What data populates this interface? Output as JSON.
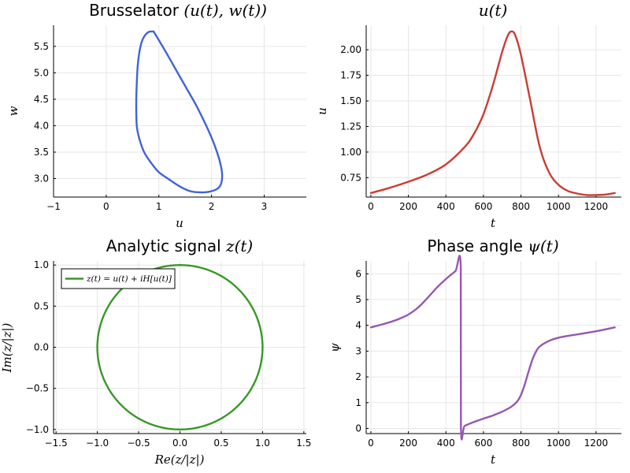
{
  "colors": {
    "brusselator": "#4063d8",
    "u": "#cb3c33",
    "analytic": "#389826",
    "phase": "#9558b2"
  },
  "chart_data": [
    {
      "id": "p1",
      "type": "line",
      "title": "Brusselator",
      "title_math": "(u(t), w(t))",
      "xlabel": "u",
      "ylabel": "w",
      "xlim": [
        -1,
        3.8
      ],
      "ylim": [
        2.65,
        5.9
      ],
      "xticks": [
        -1,
        0,
        1,
        2,
        3
      ],
      "xtick_labels": [
        "−1",
        "0",
        "1",
        "2",
        "3"
      ],
      "yticks": [
        3.0,
        3.5,
        4.0,
        4.5,
        5.0,
        5.5
      ],
      "ytick_labels": [
        "3.0",
        "3.5",
        "4.0",
        "4.5",
        "5.0",
        "5.5"
      ],
      "grid": true,
      "series": [
        {
          "color_key": "brusselator",
          "x": [
            0.9,
            1.1,
            1.3,
            1.5,
            1.7,
            1.9,
            2.05,
            2.15,
            2.2,
            2.18,
            2.1,
            1.95,
            1.8,
            1.6,
            1.4,
            1.2,
            1.0,
            0.85,
            0.72,
            0.63,
            0.58,
            0.57,
            0.58,
            0.6,
            0.64,
            0.7,
            0.8,
            0.9
          ],
          "y": [
            5.78,
            5.45,
            5.1,
            4.75,
            4.4,
            4.0,
            3.65,
            3.35,
            3.1,
            2.9,
            2.8,
            2.75,
            2.74,
            2.76,
            2.85,
            2.98,
            3.12,
            3.3,
            3.5,
            3.75,
            4.0,
            4.4,
            4.8,
            5.15,
            5.45,
            5.65,
            5.77,
            5.78
          ]
        }
      ]
    },
    {
      "id": "p2",
      "type": "line",
      "title": "",
      "title_math": "u(t)",
      "xlabel": "t",
      "ylabel": "u",
      "xlim": [
        -25,
        1335
      ],
      "ylim": [
        0.56,
        2.24
      ],
      "xticks": [
        0,
        200,
        400,
        600,
        800,
        1000,
        1200
      ],
      "xtick_labels": [
        "0",
        "200",
        "400",
        "600",
        "800",
        "1000",
        "1200"
      ],
      "yticks": [
        0.75,
        1.0,
        1.25,
        1.5,
        1.75,
        2.0
      ],
      "ytick_labels": [
        "0.75",
        "1.00",
        "1.25",
        "1.50",
        "1.75",
        "2.00"
      ],
      "grid": true,
      "series": [
        {
          "color_key": "u",
          "x": [
            0,
            100,
            200,
            300,
            400,
            500,
            550,
            600,
            650,
            700,
            730,
            750,
            770,
            800,
            850,
            900,
            950,
            1000,
            1050,
            1100,
            1150,
            1200,
            1250,
            1300
          ],
          "y": [
            0.6,
            0.65,
            0.71,
            0.78,
            0.88,
            1.05,
            1.18,
            1.37,
            1.65,
            1.98,
            2.14,
            2.18,
            2.14,
            1.95,
            1.5,
            1.05,
            0.8,
            0.68,
            0.62,
            0.595,
            0.58,
            0.58,
            0.585,
            0.6
          ]
        }
      ]
    },
    {
      "id": "p3",
      "type": "line",
      "title": "Analytic signal",
      "title_math": "z(t)",
      "xlabel": "Re(z/|z|)",
      "ylabel": "Im(z/|z|)",
      "xlim": [
        -1.53,
        1.53
      ],
      "ylim": [
        -1.05,
        1.05
      ],
      "xticks": [
        -1.5,
        -1.0,
        -0.5,
        0.0,
        0.5,
        1.0,
        1.5
      ],
      "xtick_labels": [
        "−1.5",
        "−1.0",
        "−0.5",
        "0.0",
        "0.5",
        "1.0",
        "1.5"
      ],
      "yticks": [
        -1.0,
        -0.5,
        0.0,
        0.5,
        1.0
      ],
      "ytick_labels": [
        "−1.0",
        "−0.5",
        "0.0",
        "0.5",
        "1.0"
      ],
      "grid": true,
      "legend": {
        "position": "top-left",
        "entry": "z(t) = u(t) + iH[u(t)]"
      },
      "series": [
        {
          "name": "z(t) = u(t) + iH[u(t)]",
          "color_key": "analytic",
          "shape": "unit-circle",
          "radius": 1.0
        }
      ]
    },
    {
      "id": "p4",
      "type": "line",
      "title": "Phase angle",
      "title_math": "ψ(t)",
      "xlabel": "t",
      "ylabel": "ψ",
      "xlim": [
        -25,
        1335
      ],
      "ylim": [
        -0.2,
        6.5
      ],
      "xticks": [
        0,
        200,
        400,
        600,
        800,
        1000,
        1200
      ],
      "xtick_labels": [
        "0",
        "200",
        "400",
        "600",
        "800",
        "1000",
        "1200"
      ],
      "yticks": [
        0,
        1,
        2,
        3,
        4,
        5,
        6
      ],
      "ytick_labels": [
        "0",
        "1",
        "2",
        "3",
        "4",
        "5",
        "6"
      ],
      "grid": true,
      "series": [
        {
          "color_key": "phase",
          "x": [
            0,
            50,
            100,
            150,
            200,
            250,
            300,
            350,
            400,
            450,
            479,
            480,
            500,
            550,
            600,
            650,
            700,
            750,
            780,
            800,
            820,
            840,
            860,
            880,
            900,
            950,
            1000,
            1100,
            1200,
            1300
          ],
          "y": [
            3.92,
            4.02,
            4.12,
            4.25,
            4.42,
            4.68,
            5.05,
            5.45,
            5.8,
            6.1,
            6.28,
            0.02,
            0.1,
            0.25,
            0.38,
            0.5,
            0.65,
            0.85,
            1.05,
            1.3,
            1.7,
            2.2,
            2.65,
            2.98,
            3.18,
            3.4,
            3.52,
            3.65,
            3.77,
            3.92
          ]
        }
      ]
    }
  ]
}
